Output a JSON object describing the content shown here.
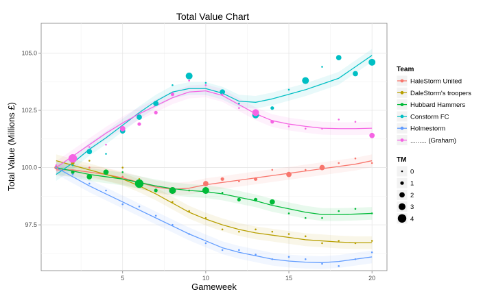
{
  "chart_data": {
    "type": "scatter",
    "title": "Total Value Chart",
    "xlabel": "Gameweek",
    "ylabel": "Total Value (Millions £)",
    "xlim": [
      0.1,
      20.9
    ],
    "ylim": [
      95.5,
      106.3
    ],
    "x_ticks": [
      5,
      10,
      15,
      20
    ],
    "y_ticks": [
      97.5,
      100.0,
      102.5,
      105.0
    ],
    "y_tick_labels": [
      "97.5",
      "100.0",
      "102.5",
      "105.0"
    ],
    "grid": true,
    "legend_position": "right",
    "color_legend_title": "Team",
    "size_legend_title": "TM",
    "size_legend_values": [
      0,
      1,
      2,
      3,
      4
    ],
    "series": [
      {
        "name": "HaleStorm United",
        "color": "#F8766D",
        "points": [
          [
            1,
            100.0,
            1
          ],
          [
            2,
            100.2,
            0
          ],
          [
            3,
            100.0,
            0
          ],
          [
            4,
            99.8,
            0
          ],
          [
            5,
            99.6,
            0
          ],
          [
            6,
            99.4,
            0
          ],
          [
            7,
            99.0,
            0
          ],
          [
            8,
            99.0,
            3
          ],
          [
            9,
            99.0,
            0
          ],
          [
            10,
            99.3,
            2
          ],
          [
            11,
            99.5,
            1
          ],
          [
            12,
            99.4,
            0
          ],
          [
            13,
            99.5,
            1
          ],
          [
            14,
            99.9,
            0
          ],
          [
            15,
            99.7,
            2
          ],
          [
            16,
            99.9,
            0
          ],
          [
            17,
            100.0,
            2
          ],
          [
            18,
            100.2,
            0
          ],
          [
            19,
            100.4,
            0
          ],
          [
            20,
            100.2,
            0
          ]
        ],
        "trend": [
          [
            1,
            99.9
          ],
          [
            2,
            99.9
          ],
          [
            3,
            99.8
          ],
          [
            4,
            99.7
          ],
          [
            5,
            99.55
          ],
          [
            6,
            99.35
          ],
          [
            7,
            99.15
          ],
          [
            8,
            99.05
          ],
          [
            9,
            99.1
          ],
          [
            10,
            99.25
          ],
          [
            11,
            99.35
          ],
          [
            12,
            99.45
          ],
          [
            13,
            99.55
          ],
          [
            14,
            99.65
          ],
          [
            15,
            99.75
          ],
          [
            16,
            99.85
          ],
          [
            17,
            99.95
          ],
          [
            18,
            100.05
          ],
          [
            19,
            100.15
          ],
          [
            20,
            100.3
          ]
        ]
      },
      {
        "name": "DaleStorm's troopers",
        "color": "#B79F00",
        "points": [
          [
            1,
            100.0,
            0
          ],
          [
            2,
            100.2,
            1
          ],
          [
            3,
            100.3,
            0
          ],
          [
            4,
            99.8,
            1
          ],
          [
            5,
            100.0,
            0
          ],
          [
            6,
            99.5,
            0
          ],
          [
            7,
            99.0,
            0
          ],
          [
            8,
            98.5,
            0
          ],
          [
            9,
            98.1,
            0
          ],
          [
            10,
            97.8,
            0
          ],
          [
            11,
            97.3,
            0
          ],
          [
            12,
            97.2,
            0
          ],
          [
            13,
            97.3,
            0
          ],
          [
            14,
            97.2,
            0
          ],
          [
            15,
            97.1,
            0
          ],
          [
            16,
            97.0,
            0
          ],
          [
            17,
            96.7,
            0
          ],
          [
            18,
            96.8,
            0
          ],
          [
            19,
            96.7,
            0
          ],
          [
            20,
            96.8,
            0
          ]
        ],
        "trend": [
          [
            1,
            100.3
          ],
          [
            2,
            100.1
          ],
          [
            3,
            99.9
          ],
          [
            4,
            99.7
          ],
          [
            5,
            99.5
          ],
          [
            6,
            99.2
          ],
          [
            7,
            98.85
          ],
          [
            8,
            98.45
          ],
          [
            9,
            98.05
          ],
          [
            10,
            97.75
          ],
          [
            11,
            97.5
          ],
          [
            12,
            97.3
          ],
          [
            13,
            97.15
          ],
          [
            14,
            97.05
          ],
          [
            15,
            96.95
          ],
          [
            16,
            96.85
          ],
          [
            17,
            96.8
          ],
          [
            18,
            96.75
          ],
          [
            19,
            96.72
          ],
          [
            20,
            96.72
          ]
        ]
      },
      {
        "name": "Hubbard Hammers",
        "color": "#00BA38",
        "points": [
          [
            1,
            100.0,
            0
          ],
          [
            2,
            99.8,
            1
          ],
          [
            3,
            99.6,
            2
          ],
          [
            4,
            99.8,
            2
          ],
          [
            5,
            99.8,
            0
          ],
          [
            6,
            99.3,
            4
          ],
          [
            7,
            99.0,
            1
          ],
          [
            8,
            99.0,
            3
          ],
          [
            9,
            99.0,
            0
          ],
          [
            10,
            99.0,
            3
          ],
          [
            11,
            98.9,
            0
          ],
          [
            12,
            98.6,
            1
          ],
          [
            13,
            98.6,
            1
          ],
          [
            14,
            98.5,
            2
          ],
          [
            15,
            98.0,
            0
          ],
          [
            16,
            97.8,
            0
          ],
          [
            17,
            97.8,
            0
          ],
          [
            18,
            98.1,
            0
          ],
          [
            19,
            98.2,
            0
          ],
          [
            20,
            98.0,
            0
          ]
        ],
        "trend": [
          [
            1,
            100.0
          ],
          [
            2,
            99.85
          ],
          [
            3,
            99.7
          ],
          [
            4,
            99.6
          ],
          [
            5,
            99.5
          ],
          [
            6,
            99.35
          ],
          [
            7,
            99.2
          ],
          [
            8,
            99.08
          ],
          [
            9,
            99.0
          ],
          [
            10,
            98.95
          ],
          [
            11,
            98.85
          ],
          [
            12,
            98.7
          ],
          [
            13,
            98.55
          ],
          [
            14,
            98.35
          ],
          [
            15,
            98.2
          ],
          [
            16,
            98.05
          ],
          [
            17,
            97.95
          ],
          [
            18,
            97.95
          ],
          [
            19,
            97.97
          ],
          [
            20,
            98.0
          ]
        ]
      },
      {
        "name": "Constorm FC",
        "color": "#00BFC4",
        "points": [
          [
            1,
            100.0,
            0
          ],
          [
            2,
            100.1,
            0
          ],
          [
            3,
            100.7,
            2
          ],
          [
            4,
            100.6,
            0
          ],
          [
            5,
            101.6,
            2
          ],
          [
            6,
            102.2,
            2
          ],
          [
            7,
            102.8,
            2
          ],
          [
            8,
            103.6,
            0
          ],
          [
            9,
            104.0,
            3
          ],
          [
            10,
            103.7,
            0
          ],
          [
            11,
            103.3,
            2
          ],
          [
            12,
            102.8,
            0
          ],
          [
            13,
            102.3,
            3
          ],
          [
            14,
            102.6,
            1
          ],
          [
            15,
            103.4,
            0
          ],
          [
            16,
            103.8,
            3
          ],
          [
            17,
            104.4,
            0
          ],
          [
            18,
            104.8,
            2
          ],
          [
            19,
            104.1,
            2
          ],
          [
            20,
            104.6,
            3
          ]
        ],
        "trend": [
          [
            1,
            99.7
          ],
          [
            2,
            100.2
          ],
          [
            3,
            100.8
          ],
          [
            4,
            101.3
          ],
          [
            5,
            101.85
          ],
          [
            6,
            102.4
          ],
          [
            7,
            102.9
          ],
          [
            8,
            103.3
          ],
          [
            9,
            103.45
          ],
          [
            10,
            103.45
          ],
          [
            11,
            103.25
          ],
          [
            12,
            102.9
          ],
          [
            13,
            102.85
          ],
          [
            14,
            103.0
          ],
          [
            15,
            103.2
          ],
          [
            16,
            103.4
          ],
          [
            17,
            103.65
          ],
          [
            18,
            103.9
          ],
          [
            19,
            104.4
          ],
          [
            20,
            104.9
          ]
        ]
      },
      {
        "name": "Holmestorm",
        "color": "#619CFF",
        "points": [
          [
            1,
            100.0,
            0
          ],
          [
            2,
            99.7,
            0
          ],
          [
            3,
            99.3,
            0
          ],
          [
            4,
            99.0,
            0
          ],
          [
            5,
            98.4,
            0
          ],
          [
            6,
            98.3,
            0
          ],
          [
            7,
            97.9,
            0
          ],
          [
            8,
            97.5,
            0
          ],
          [
            9,
            97.1,
            0
          ],
          [
            10,
            96.7,
            0
          ],
          [
            11,
            96.4,
            0
          ],
          [
            12,
            96.4,
            0
          ],
          [
            13,
            96.2,
            0
          ],
          [
            14,
            96.0,
            0
          ],
          [
            15,
            96.1,
            0
          ],
          [
            16,
            96.0,
            0
          ],
          [
            17,
            95.8,
            0
          ],
          [
            18,
            95.7,
            0
          ],
          [
            19,
            96.0,
            0
          ],
          [
            20,
            96.3,
            0
          ]
        ],
        "trend": [
          [
            1,
            100.0
          ],
          [
            2,
            99.6
          ],
          [
            3,
            99.2
          ],
          [
            4,
            98.85
          ],
          [
            5,
            98.5
          ],
          [
            6,
            98.15
          ],
          [
            7,
            97.8
          ],
          [
            8,
            97.45
          ],
          [
            9,
            97.1
          ],
          [
            10,
            96.8
          ],
          [
            11,
            96.5
          ],
          [
            12,
            96.3
          ],
          [
            13,
            96.15
          ],
          [
            14,
            96.0
          ],
          [
            15,
            95.92
          ],
          [
            16,
            95.87
          ],
          [
            17,
            95.85
          ],
          [
            18,
            95.9
          ],
          [
            19,
            96.0
          ],
          [
            20,
            96.1
          ]
        ]
      },
      {
        "name": "......... (Graham)",
        "color": "#F564E3",
        "points": [
          [
            1,
            100.1,
            0
          ],
          [
            2,
            100.4,
            4
          ],
          [
            3,
            100.9,
            0
          ],
          [
            4,
            101.0,
            0
          ],
          [
            5,
            101.7,
            2
          ],
          [
            6,
            101.9,
            1
          ],
          [
            7,
            102.4,
            1
          ],
          [
            8,
            103.2,
            1
          ],
          [
            9,
            103.8,
            0
          ],
          [
            10,
            103.6,
            0
          ],
          [
            11,
            103.2,
            0
          ],
          [
            12,
            102.6,
            0
          ],
          [
            13,
            102.4,
            3
          ],
          [
            14,
            102.0,
            1
          ],
          [
            15,
            101.8,
            0
          ],
          [
            16,
            101.7,
            0
          ],
          [
            17,
            101.7,
            0
          ],
          [
            18,
            102.1,
            0
          ],
          [
            19,
            102.0,
            0
          ],
          [
            20,
            101.4,
            2
          ]
        ],
        "trend": [
          [
            1,
            100.0
          ],
          [
            2,
            100.5
          ],
          [
            3,
            101.0
          ],
          [
            4,
            101.5
          ],
          [
            5,
            101.95
          ],
          [
            6,
            102.35
          ],
          [
            7,
            102.7
          ],
          [
            8,
            103.05
          ],
          [
            9,
            103.3
          ],
          [
            10,
            103.35
          ],
          [
            11,
            103.15
          ],
          [
            12,
            102.75
          ],
          [
            13,
            102.35
          ],
          [
            14,
            102.05
          ],
          [
            15,
            101.9
          ],
          [
            16,
            101.8
          ],
          [
            17,
            101.72
          ],
          [
            18,
            101.7
          ],
          [
            19,
            101.7
          ],
          [
            20,
            101.72
          ]
        ]
      }
    ]
  }
}
